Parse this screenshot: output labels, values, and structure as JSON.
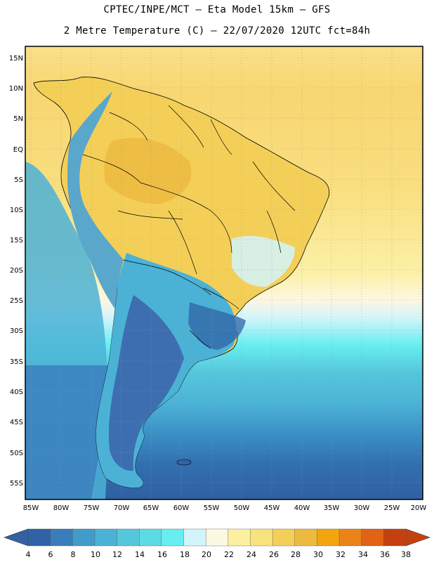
{
  "header": {
    "line1": "CPTEC/INPE/MCT –  Eta Model 15km – GFS",
    "line2": "2 Metre Temperature (C) – 22/07/2020 12UTC fct=84h"
  },
  "axes": {
    "lat_labels": [
      "15N",
      "10N",
      "5N",
      "EQ",
      "5S",
      "10S",
      "15S",
      "20S",
      "25S",
      "30S",
      "35S",
      "40S",
      "45S",
      "50S",
      "55S"
    ],
    "lon_labels": [
      "85W",
      "80W",
      "75W",
      "70W",
      "65W",
      "60W",
      "55W",
      "50W",
      "45W",
      "40W",
      "35W",
      "30W",
      "25W",
      "20W"
    ]
  },
  "colorbar": {
    "labels": [
      "4",
      "6",
      "8",
      "10",
      "12",
      "14",
      "16",
      "18",
      "20",
      "22",
      "24",
      "26",
      "28",
      "30",
      "32",
      "34",
      "36",
      "38"
    ],
    "colors": [
      "#2f63a6",
      "#3a7dbd",
      "#429cc9",
      "#4bb2d6",
      "#55c6dc",
      "#5ddbe3",
      "#66eef0",
      "#d2f4fb",
      "#fdf8e4",
      "#fbf0a0",
      "#f8e27c",
      "#f4cf58",
      "#ecba3f",
      "#f2a50d",
      "#ea8419",
      "#e06317",
      "#c5400f"
    ],
    "low_color": "#3561a2",
    "high_color": "#c3400f"
  },
  "colors": {
    "ocean_cold": "#2f63a6",
    "ocean_cool": "#4bb2d6",
    "ocean_mild": "#d2f4fb",
    "tropical_warm": "#f8d96a",
    "tropical_hot": "#f0c24a",
    "andes": "#5aa7cc",
    "patagonia": "#3d6fb0",
    "border": "#000000",
    "grid": "#9a9a9a"
  }
}
